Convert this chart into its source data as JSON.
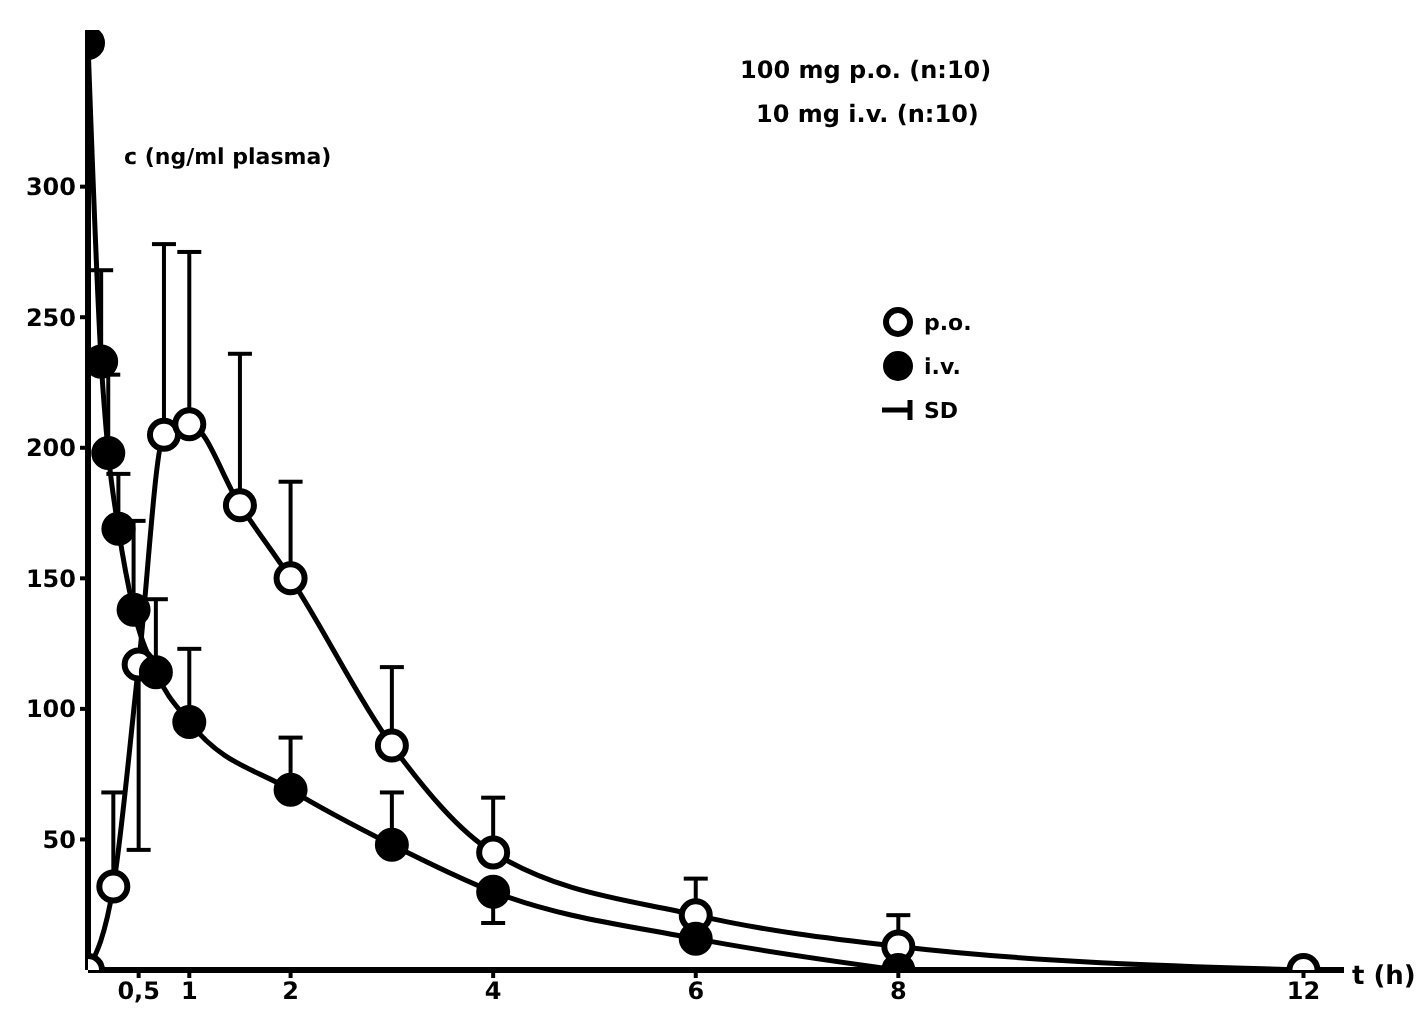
{
  "chart_data": {
    "type": "line",
    "title": "100 mg p.o. (n:10)",
    "subtitle": "10 mg i.v. (n:10)",
    "xlabel": "t (h)",
    "ylabel": "c (ng/ml plasma)",
    "xlim": [
      0,
      12.4
    ],
    "ylim": [
      0,
      360
    ],
    "xticks": [
      {
        "value": 0.5,
        "label": "0,5"
      },
      1,
      2,
      4,
      6,
      8,
      12
    ],
    "yticks": [
      50,
      100,
      150,
      200,
      250,
      300
    ],
    "marker": "circle",
    "line_style": "solid",
    "legend": "top right",
    "annotations": [
      "SD"
    ],
    "series": [
      {
        "name": "p.o.",
        "color": "#000000",
        "x": [
          0,
          0.25,
          0.5,
          0.75,
          1,
          1.5,
          2,
          3,
          4,
          6,
          8,
          12
        ],
        "values": [
          0,
          32,
          117,
          205,
          209,
          178,
          150,
          86,
          45,
          21,
          9,
          0
        ],
        "errors": [
          null,
          [
            32,
            68
          ],
          [
            46,
            117
          ],
          [
            205,
            278
          ],
          [
            209,
            275
          ],
          [
            178,
            236
          ],
          [
            150,
            187
          ],
          [
            86,
            116
          ],
          [
            45,
            66
          ],
          [
            21,
            35
          ],
          [
            9,
            21
          ],
          null
        ]
      },
      {
        "name": "i.v.",
        "color": "#000000",
        "x": [
          0,
          0.13,
          0.2,
          0.3,
          0.45,
          0.67,
          1,
          2,
          3,
          4,
          6,
          8
        ],
        "values": [
          355,
          233,
          198,
          169,
          138,
          114,
          95,
          69,
          48,
          30,
          12,
          0
        ],
        "errors": [
          null,
          [
            233,
            268
          ],
          [
            198,
            228
          ],
          [
            169,
            190
          ],
          [
            138,
            172
          ],
          [
            114,
            142
          ],
          [
            95,
            123
          ],
          [
            69,
            89
          ],
          [
            48,
            68
          ],
          [
            18,
            30
          ],
          null,
          null
        ]
      }
    ]
  }
}
